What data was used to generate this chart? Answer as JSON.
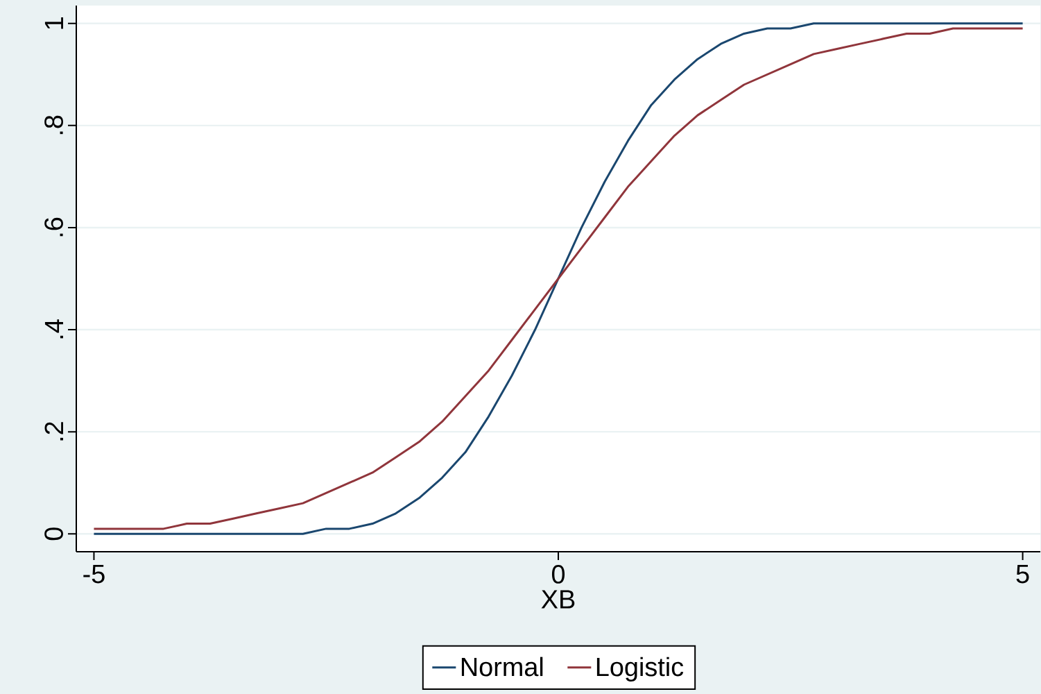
{
  "chart_data": {
    "type": "line",
    "xlabel": "XB",
    "x": [
      -5,
      -4.75,
      -4.5,
      -4.25,
      -4,
      -3.75,
      -3.5,
      -3.25,
      -3,
      -2.75,
      -2.5,
      -2.25,
      -2,
      -1.75,
      -1.5,
      -1.25,
      -1,
      -0.75,
      -0.5,
      -0.25,
      0,
      0.25,
      0.5,
      0.75,
      1,
      1.25,
      1.5,
      1.75,
      2,
      2.25,
      2.5,
      2.75,
      3,
      3.25,
      3.5,
      3.75,
      4,
      4.25,
      4.5,
      4.75,
      5
    ],
    "series": [
      {
        "name": "Normal",
        "color": "#1a476f",
        "values": [
          0,
          0,
          0,
          0,
          0,
          0,
          0,
          0,
          0,
          0,
          0.01,
          0.01,
          0.02,
          0.04,
          0.07,
          0.11,
          0.16,
          0.23,
          0.31,
          0.4,
          0.5,
          0.6,
          0.69,
          0.77,
          0.84,
          0.89,
          0.93,
          0.96,
          0.98,
          0.99,
          0.99,
          1,
          1,
          1,
          1,
          1,
          1,
          1,
          1,
          1,
          1
        ]
      },
      {
        "name": "Logistic",
        "color": "#90353b",
        "values": [
          0.01,
          0.01,
          0.01,
          0.01,
          0.02,
          0.02,
          0.03,
          0.04,
          0.05,
          0.06,
          0.08,
          0.1,
          0.12,
          0.15,
          0.18,
          0.22,
          0.27,
          0.32,
          0.38,
          0.44,
          0.5,
          0.56,
          0.62,
          0.68,
          0.73,
          0.78,
          0.82,
          0.85,
          0.88,
          0.9,
          0.92,
          0.94,
          0.95,
          0.96,
          0.97,
          0.98,
          0.98,
          0.99,
          0.99,
          0.99,
          0.99
        ]
      }
    ],
    "xlim": [
      -5.19,
      5.19
    ],
    "ylim": [
      -0.035,
      1.035
    ],
    "xticks": [
      -5,
      0,
      5
    ],
    "yticks": [
      0,
      {
        "value": 0.2,
        "label": ".2"
      },
      {
        "value": 0.4,
        "label": ".4"
      },
      {
        "value": 0.6,
        "label": ".6"
      },
      {
        "value": 0.8,
        "label": ".8"
      },
      1
    ],
    "grid": "y",
    "legend": "bottom",
    "line_style": "solid",
    "marker": "none"
  }
}
